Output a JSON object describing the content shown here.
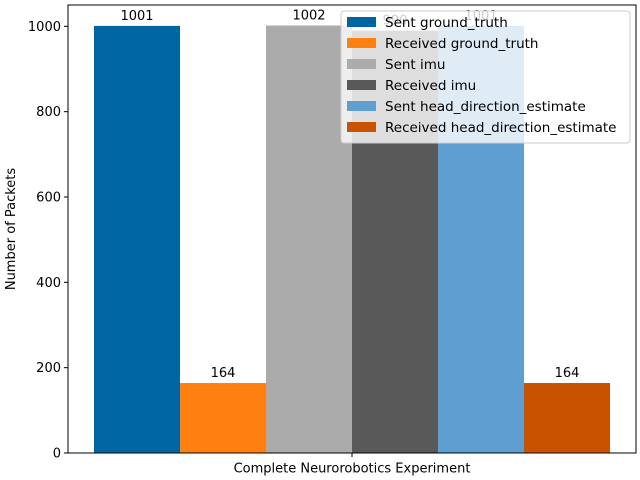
{
  "chart_data": {
    "type": "bar",
    "title": "",
    "xlabel": "Complete Neurorobotics Experiment",
    "ylabel": "Number of Packets",
    "categories": [
      "Complete Neurorobotics Experiment"
    ],
    "ylim": [
      0,
      1050
    ],
    "yticks": [
      0,
      200,
      400,
      600,
      800,
      1000
    ],
    "grid": false,
    "legend_position": "top-right",
    "series": [
      {
        "name": "Sent ground_truth",
        "values": [
          1001
        ],
        "color": "#0066a1"
      },
      {
        "name": "Received ground_truth",
        "values": [
          164
        ],
        "color": "#ff800e"
      },
      {
        "name": "Sent imu",
        "values": [
          1002
        ],
        "color": "#ababab"
      },
      {
        "name": "Received imu",
        "values": [
          990
        ],
        "color": "#595959"
      },
      {
        "name": "Sent head_direction_estimate",
        "values": [
          1001
        ],
        "color": "#5f9ed1"
      },
      {
        "name": "Received head_direction_estimate",
        "values": [
          164
        ],
        "color": "#c85200"
      }
    ]
  }
}
